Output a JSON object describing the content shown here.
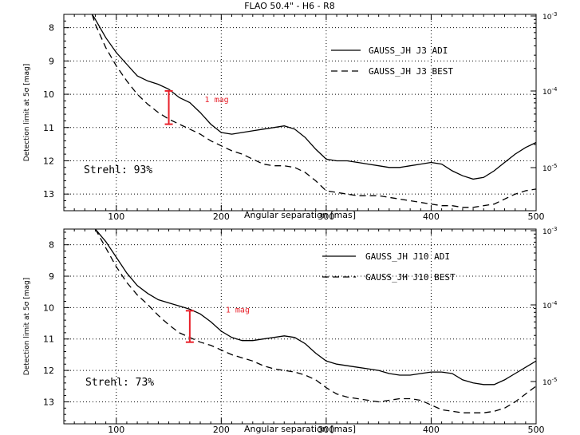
{
  "figure_title": "FLAO 50.4\" - H6 - R8",
  "colors": {
    "annotation": "#e8202a",
    "line": "#000000",
    "grid": "#000000"
  },
  "chart_data": [
    {
      "type": "line",
      "xlabel": "Angular separation [mas]",
      "ylabel": "Detection limit at 5σ [mag]",
      "xlim": [
        50,
        500
      ],
      "ylim": [
        13.5,
        7.6
      ],
      "xticks": [
        100,
        200,
        300,
        400,
        500
      ],
      "yticks": [
        8,
        9,
        10,
        11,
        12,
        13
      ],
      "right_ticks": [
        {
          "base": "10",
          "exp": "-3"
        },
        {
          "base": "10",
          "exp": "-4"
        },
        {
          "base": "10",
          "exp": "-5"
        }
      ],
      "grid": true,
      "legend_position": "top-right",
      "strehl_text": "Strehl: 93%",
      "annotation": {
        "text": "1 mag",
        "x": 150,
        "y_top": 9.9,
        "y_bottom": 10.9
      },
      "series": [
        {
          "name": "GAUSS_JH J3 ADI",
          "style": "solid",
          "x": [
            77,
            80,
            90,
            100,
            110,
            120,
            130,
            140,
            150,
            160,
            170,
            180,
            190,
            200,
            210,
            220,
            230,
            240,
            250,
            260,
            270,
            280,
            290,
            300,
            310,
            320,
            330,
            340,
            350,
            360,
            370,
            380,
            390,
            400,
            410,
            420,
            430,
            440,
            450,
            460,
            470,
            480,
            490,
            500
          ],
          "y": [
            7.6,
            7.75,
            8.3,
            8.75,
            9.1,
            9.45,
            9.6,
            9.7,
            9.85,
            10.1,
            10.25,
            10.55,
            10.9,
            11.15,
            11.2,
            11.15,
            11.1,
            11.05,
            11.0,
            10.95,
            11.05,
            11.3,
            11.65,
            11.95,
            12.0,
            12.0,
            12.05,
            12.1,
            12.15,
            12.2,
            12.2,
            12.15,
            12.1,
            12.05,
            12.1,
            12.3,
            12.45,
            12.55,
            12.5,
            12.3,
            12.05,
            11.8,
            11.6,
            11.45
          ]
        },
        {
          "name": "GAUSS_JH J3 BEST",
          "style": "dashed",
          "x": [
            77,
            80,
            90,
            100,
            110,
            120,
            130,
            140,
            150,
            160,
            170,
            180,
            190,
            200,
            210,
            220,
            230,
            240,
            250,
            260,
            270,
            280,
            290,
            300,
            310,
            320,
            330,
            340,
            350,
            360,
            370,
            380,
            390,
            400,
            410,
            420,
            430,
            440,
            450,
            460,
            470,
            480,
            490,
            500
          ],
          "y": [
            7.6,
            7.9,
            8.6,
            9.15,
            9.6,
            10.0,
            10.3,
            10.55,
            10.75,
            10.9,
            11.05,
            11.2,
            11.4,
            11.55,
            11.7,
            11.8,
            11.95,
            12.1,
            12.15,
            12.15,
            12.2,
            12.35,
            12.6,
            12.9,
            12.95,
            13.0,
            13.05,
            13.05,
            13.05,
            13.1,
            13.15,
            13.2,
            13.25,
            13.3,
            13.35,
            13.35,
            13.4,
            13.4,
            13.35,
            13.3,
            13.15,
            13.0,
            12.9,
            12.85
          ]
        }
      ]
    },
    {
      "type": "line",
      "xlabel": "Angular separation [mas]",
      "ylabel": "Detection limit at 5σ [mag]",
      "xlim": [
        50,
        500
      ],
      "ylim": [
        13.7,
        7.5
      ],
      "xticks": [
        100,
        200,
        300,
        400,
        500
      ],
      "yticks": [
        8,
        9,
        10,
        11,
        12,
        13
      ],
      "right_ticks": [
        {
          "base": "10",
          "exp": "-3"
        },
        {
          "base": "10",
          "exp": "-4"
        },
        {
          "base": "10",
          "exp": "-5"
        }
      ],
      "grid": true,
      "legend_position": "top-right",
      "strehl_text": "Strehl: 73%",
      "annotation": {
        "text": "1 mag",
        "x": 170,
        "y_top": 10.1,
        "y_bottom": 11.1
      },
      "series": [
        {
          "name": "GAUSS_JH J10 ADI",
          "style": "solid",
          "x": [
            80,
            90,
            100,
            110,
            120,
            130,
            140,
            150,
            160,
            170,
            180,
            190,
            200,
            210,
            220,
            230,
            240,
            250,
            260,
            270,
            280,
            290,
            300,
            310,
            320,
            330,
            340,
            350,
            360,
            370,
            380,
            390,
            400,
            410,
            420,
            430,
            440,
            450,
            460,
            470,
            480,
            490,
            500
          ],
          "y": [
            7.5,
            7.9,
            8.4,
            8.9,
            9.3,
            9.55,
            9.75,
            9.85,
            9.95,
            10.05,
            10.2,
            10.45,
            10.75,
            10.95,
            11.05,
            11.05,
            11.0,
            10.95,
            10.9,
            10.95,
            11.15,
            11.45,
            11.7,
            11.8,
            11.85,
            11.9,
            11.95,
            12.0,
            12.1,
            12.15,
            12.15,
            12.1,
            12.05,
            12.05,
            12.1,
            12.3,
            12.4,
            12.45,
            12.45,
            12.3,
            12.1,
            11.9,
            11.7
          ]
        },
        {
          "name": "GAUSS_JH J10 BEST",
          "style": "dashed",
          "x": [
            80,
            90,
            100,
            110,
            120,
            130,
            140,
            150,
            160,
            170,
            180,
            190,
            200,
            210,
            220,
            230,
            240,
            250,
            260,
            270,
            280,
            290,
            300,
            310,
            320,
            330,
            340,
            350,
            360,
            370,
            380,
            390,
            400,
            410,
            420,
            430,
            440,
            450,
            460,
            470,
            480,
            490,
            500
          ],
          "y": [
            7.5,
            8.1,
            8.7,
            9.2,
            9.6,
            9.9,
            10.25,
            10.55,
            10.8,
            10.95,
            11.1,
            11.2,
            11.35,
            11.5,
            11.6,
            11.7,
            11.85,
            11.95,
            12.0,
            12.05,
            12.15,
            12.3,
            12.55,
            12.75,
            12.85,
            12.9,
            12.95,
            13.0,
            12.95,
            12.9,
            12.9,
            12.95,
            13.1,
            13.25,
            13.3,
            13.35,
            13.35,
            13.35,
            13.3,
            13.2,
            13.0,
            12.75,
            12.5
          ]
        }
      ]
    }
  ]
}
